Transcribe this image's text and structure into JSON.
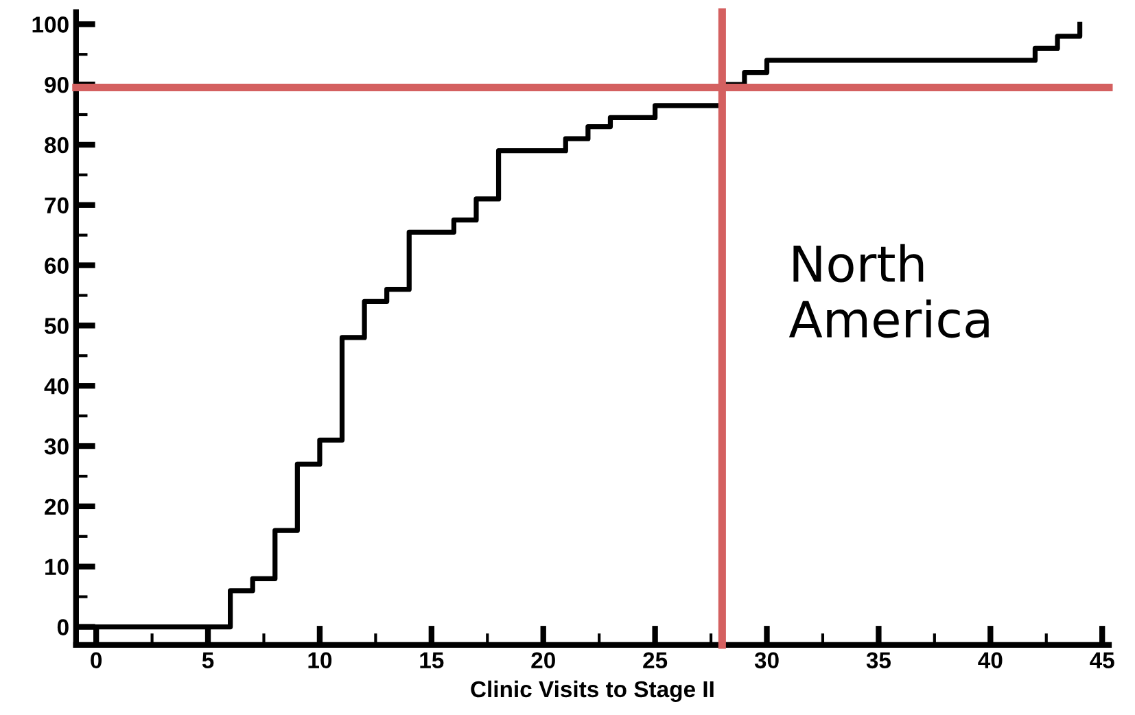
{
  "chart_data": {
    "type": "step",
    "xlabel": "Clinic Visits to Stage II",
    "series": [
      {
        "color": "#000000",
        "x": [
          -0.9,
          6,
          7,
          8,
          9,
          10,
          11,
          12,
          13,
          14,
          16,
          17,
          18,
          21,
          22,
          23,
          25,
          28,
          29,
          30,
          42,
          43,
          44
        ],
        "values": [
          0,
          6,
          8,
          16,
          27,
          31,
          48,
          54,
          56,
          65.5,
          67.5,
          71,
          79,
          81,
          83,
          84.5,
          86.5,
          90,
          92,
          94,
          96,
          98,
          100
        ]
      }
    ],
    "xlim": [
      -0.9,
      45.3
    ],
    "ylim": [
      -3,
      102
    ],
    "xticks": [
      0,
      {
        "value": 2.5,
        "label": null
      },
      5,
      {
        "value": 7.5,
        "label": null
      },
      10,
      {
        "value": 12.5,
        "label": null
      },
      15,
      {
        "value": 17.5,
        "label": null
      },
      20,
      {
        "value": 22.5,
        "label": null
      },
      25,
      {
        "value": 27.5,
        "label": null
      },
      30,
      {
        "value": 32.5,
        "label": null
      },
      35,
      {
        "value": 37.5,
        "label": null
      },
      40,
      {
        "value": 42.5,
        "label": null
      },
      45
    ],
    "yticks": [
      0,
      {
        "value": 5,
        "label": null
      },
      10,
      {
        "value": 15,
        "label": null
      },
      20,
      {
        "value": 25,
        "label": null
      },
      30,
      {
        "value": 35,
        "label": null
      },
      40,
      {
        "value": 45,
        "label": null
      },
      50,
      {
        "value": 55,
        "label": null
      },
      60,
      {
        "value": 65,
        "label": null
      },
      70,
      {
        "value": 75,
        "label": null
      },
      80,
      {
        "value": 85,
        "label": null
      },
      90,
      {
        "value": 95,
        "label": null
      },
      100
    ],
    "ref_lines": [
      {
        "axis": "y",
        "value": 89.5,
        "color": "#d46060"
      },
      {
        "axis": "x",
        "value": 28,
        "color": "#d46060"
      }
    ],
    "annotations": [
      "North\nAmerica"
    ],
    "grid": false,
    "legend": false
  }
}
